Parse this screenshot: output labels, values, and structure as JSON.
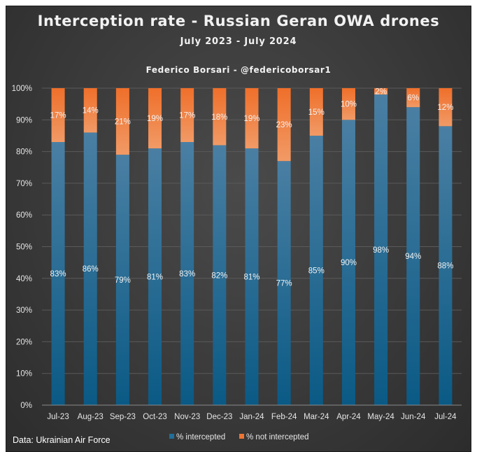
{
  "chart_data": {
    "type": "bar",
    "stacked": true,
    "title": "Interception rate - Russian Geran OWA drones",
    "subtitle": "July 2023 - July 2024",
    "author": "Federico Borsari - @federicoborsar1",
    "source": "Data: Ukrainian Air Force",
    "categories": [
      "Jul-23",
      "Aug-23",
      "Sep-23",
      "Oct-23",
      "Nov-23",
      "Dec-23",
      "Jan-24",
      "Feb-24",
      "Mar-24",
      "Apr-24",
      "May-24",
      "Jun-24",
      "Jul-24"
    ],
    "series": [
      {
        "name": "% intercepted",
        "color": "#1f6f9a",
        "values": [
          83,
          86,
          79,
          81,
          83,
          82,
          81,
          77,
          85,
          90,
          98,
          94,
          88
        ],
        "labels": [
          "83%",
          "86%",
          "79%",
          "81%",
          "83%",
          "82%",
          "81%",
          "77%",
          "85%",
          "90%",
          "98%",
          "94%",
          "88%"
        ]
      },
      {
        "name": "% not intercepted",
        "color": "#ee7432",
        "values": [
          17,
          14,
          21,
          19,
          17,
          18,
          19,
          23,
          15,
          10,
          2,
          6,
          12
        ],
        "labels": [
          "17%",
          "14%",
          "21%",
          "19%",
          "17%",
          "18%",
          "19%",
          "23%",
          "15%",
          "10%",
          "2%",
          "6%",
          "12%"
        ]
      }
    ],
    "ylim": [
      0,
      100
    ],
    "yticks": [
      "0%",
      "10%",
      "20%",
      "30%",
      "40%",
      "50%",
      "60%",
      "70%",
      "80%",
      "90%",
      "100%"
    ],
    "grid": true,
    "legend": "bottom"
  }
}
